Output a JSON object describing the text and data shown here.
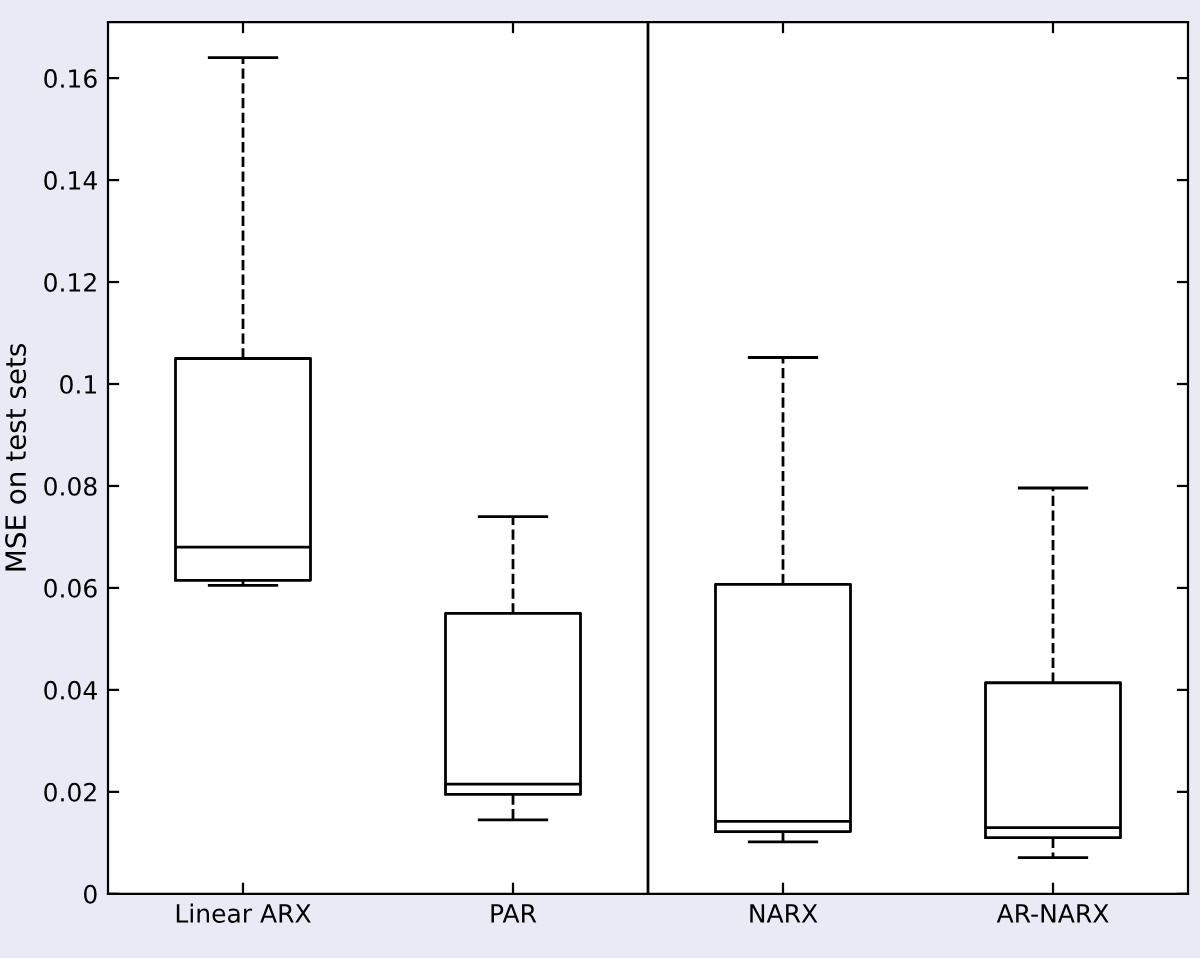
{
  "chart_data": {
    "type": "box",
    "ylabel": "MSE on test sets",
    "categories": [
      "Linear ARX",
      "PAR",
      "NARX",
      "AR-NARX"
    ],
    "boxes": [
      {
        "low": 0.0605,
        "q1": 0.0615,
        "median": 0.068,
        "q3": 0.105,
        "high": 0.164
      },
      {
        "low": 0.0145,
        "q1": 0.0195,
        "median": 0.0215,
        "q3": 0.055,
        "high": 0.074
      },
      {
        "low": 0.0102,
        "q1": 0.0122,
        "median": 0.0142,
        "q3": 0.0607,
        "high": 0.1052
      },
      {
        "low": 0.0071,
        "q1": 0.011,
        "median": 0.013,
        "q3": 0.0414,
        "high": 0.0796
      }
    ],
    "ylim": [
      0,
      0.171
    ],
    "yticks": [
      0,
      0.02,
      0.04,
      0.06,
      0.08,
      0.1,
      0.12,
      0.14,
      0.16
    ],
    "grid": false,
    "line_style": "dashed",
    "color": "#000000"
  }
}
